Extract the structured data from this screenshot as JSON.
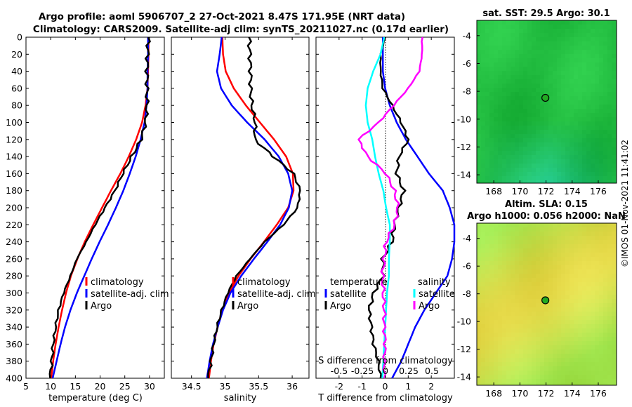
{
  "title_line1": "Argo profile: aoml 5906707_2 27-Oct-2021 8.47S 171.95E (NRT data)",
  "title_line2": "Climatology: CARS2009. Satellite-adj clim: synTS_20211027.nc (0.17d earlier)",
  "timestamp": "©IMOS 01-Nov-2021 11:41:02",
  "colors": {
    "red": "#ff0000",
    "blue": "#0000ff",
    "black": "#000000",
    "cyan": "#00ffff",
    "magenta": "#ff00ff"
  },
  "chart_data": [
    {
      "id": "temperature",
      "type": "line",
      "xlabel": "temperature (deg C)",
      "ylabel": "",
      "xlim": [
        5,
        33
      ],
      "ylim": [
        400,
        0
      ],
      "xticks": [
        "5",
        "10",
        "15",
        "20",
        "25",
        "30"
      ],
      "yticks": [
        "0",
        "20",
        "40",
        "60",
        "80",
        "100",
        "120",
        "140",
        "160",
        "180",
        "200",
        "220",
        "240",
        "260",
        "280",
        "300",
        "320",
        "340",
        "360",
        "380",
        "400"
      ],
      "depth": [
        0,
        20,
        40,
        60,
        80,
        100,
        120,
        140,
        160,
        180,
        200,
        220,
        240,
        260,
        280,
        300,
        320,
        340,
        360,
        380,
        400
      ],
      "series": [
        {
          "name": "climatology",
          "color": "red",
          "values": [
            29.8,
            29.8,
            29.7,
            29.6,
            29.2,
            28.5,
            27.3,
            25.8,
            24.1,
            22.2,
            20.4,
            18.6,
            16.9,
            15.4,
            14.1,
            13.1,
            12.3,
            11.6,
            11.0,
            10.5,
            10.1
          ]
        },
        {
          "name": "satellite-adj. clim",
          "color": "blue",
          "values": [
            29.7,
            29.7,
            29.6,
            29.6,
            29.4,
            29.0,
            28.2,
            27.2,
            26.0,
            24.7,
            23.2,
            21.6,
            19.9,
            18.3,
            16.8,
            15.3,
            14.0,
            12.9,
            12.0,
            11.2,
            10.4
          ]
        },
        {
          "name": "Argo",
          "color": "black",
          "values": [
            29.8,
            29.6,
            29.5,
            29.5,
            29.5,
            29.2,
            28.3,
            26.4,
            24.6,
            23.0,
            21.0,
            19.0,
            17.2,
            15.3,
            14.0,
            12.6,
            11.6,
            11.0,
            10.5,
            10.2,
            9.9
          ]
        }
      ],
      "legend": [
        "climatology",
        "satellite-adj. clim",
        "Argo"
      ]
    },
    {
      "id": "salinity",
      "type": "line",
      "xlabel": "salinity",
      "ylabel": "",
      "xlim": [
        34.2,
        36.25
      ],
      "ylim": [
        400,
        0
      ],
      "xticks": [
        "34.5",
        "35",
        "35.5",
        "36"
      ],
      "depth": [
        0,
        20,
        40,
        60,
        80,
        100,
        120,
        140,
        160,
        180,
        200,
        220,
        240,
        260,
        280,
        300,
        320,
        340,
        360,
        380,
        400
      ],
      "series": [
        {
          "name": "climatology",
          "color": "red",
          "values": [
            34.96,
            34.97,
            35.01,
            35.13,
            35.31,
            35.52,
            35.73,
            35.91,
            36.01,
            36.02,
            35.94,
            35.77,
            35.58,
            35.38,
            35.2,
            35.06,
            34.96,
            34.89,
            34.83,
            34.79,
            34.76
          ]
        },
        {
          "name": "satellite-adj. clim",
          "color": "blue",
          "values": [
            34.95,
            34.92,
            34.88,
            34.94,
            35.1,
            35.33,
            35.59,
            35.8,
            35.94,
            36.0,
            35.95,
            35.82,
            35.63,
            35.43,
            35.24,
            35.08,
            34.97,
            34.89,
            34.82,
            34.77,
            34.73
          ]
        },
        {
          "name": "Argo",
          "color": "black",
          "values": [
            35.36,
            35.37,
            35.38,
            35.38,
            35.4,
            35.45,
            35.44,
            35.72,
            36.02,
            36.12,
            36.08,
            35.87,
            35.59,
            35.37,
            35.17,
            35.04,
            34.95,
            34.88,
            34.83,
            34.79,
            34.75
          ]
        }
      ],
      "legend": [
        "climatology",
        "satellite-adj. clim",
        "Argo"
      ]
    },
    {
      "id": "difference",
      "type": "line",
      "xlabel": "T difference from climatology",
      "xlabel_top": "S difference from climatology",
      "ylabel": "",
      "xlim": [
        -3,
        3
      ],
      "ylim": [
        400,
        0
      ],
      "xticks": [
        "-2",
        "-1",
        "0",
        "1",
        "2"
      ],
      "xticks_top": [
        "-0.5",
        "-0.25",
        "0",
        "0.25",
        "0.5"
      ],
      "depth": [
        0,
        20,
        40,
        60,
        80,
        100,
        120,
        140,
        160,
        180,
        200,
        220,
        240,
        260,
        280,
        300,
        320,
        340,
        360,
        380,
        400
      ],
      "series": [
        {
          "name": "temperature satellite",
          "color": "blue",
          "values": [
            -0.1,
            -0.1,
            -0.1,
            0.0,
            0.2,
            0.5,
            0.9,
            1.4,
            1.9,
            2.5,
            2.8,
            3.0,
            3.0,
            2.9,
            2.7,
            2.2,
            1.7,
            1.3,
            1.0,
            0.7,
            0.3
          ]
        },
        {
          "name": "temperature Argo",
          "color": "black",
          "values": [
            0.0,
            -0.2,
            -0.2,
            -0.1,
            0.3,
            0.7,
            1.0,
            0.6,
            0.5,
            0.8,
            0.6,
            0.4,
            0.3,
            -0.1,
            -0.1,
            -0.5,
            -0.7,
            -0.6,
            -0.5,
            -0.3,
            -0.2
          ]
        },
        {
          "name": "salinity satellite",
          "color": "cyan",
          "values": [
            -0.01,
            -0.05,
            -0.13,
            -0.19,
            -0.21,
            -0.19,
            -0.14,
            -0.11,
            -0.07,
            -0.02,
            0.01,
            0.05,
            0.05,
            0.04,
            0.04,
            0.02,
            0.01,
            0.0,
            -0.01,
            -0.02,
            -0.03
          ]
        },
        {
          "name": "salinity Argo",
          "color": "magenta",
          "values": [
            0.4,
            0.4,
            0.37,
            0.25,
            0.09,
            -0.07,
            -0.29,
            -0.19,
            0.01,
            0.1,
            0.14,
            0.1,
            0.01,
            -0.01,
            -0.03,
            -0.02,
            -0.01,
            -0.01,
            0.0,
            -0.01,
            -0.01
          ]
        }
      ],
      "legend_headers": [
        "temperature",
        "salinity"
      ],
      "legend": [
        "satellite",
        "Argo",
        "satellite",
        "Argo"
      ]
    }
  ],
  "maps": [
    {
      "title": "sat. SST: 29.5 Argo: 30.1",
      "title_line2": "",
      "xticks": [
        "168",
        "170",
        "172",
        "174",
        "176"
      ],
      "yticks": [
        "-4",
        "-6",
        "-8",
        "-10",
        "-12",
        "-14"
      ],
      "float_lon": 171.95,
      "float_lat": -8.47,
      "palette": "green"
    },
    {
      "title": "Altim. SLA: 0.15",
      "title_line2": "Argo h1000: 0.056 h2000: NaN",
      "xticks": [
        "168",
        "170",
        "172",
        "174",
        "176"
      ],
      "yticks": [
        "-4",
        "-6",
        "-8",
        "-10",
        "-12",
        "-14"
      ],
      "float_lon": 171.95,
      "float_lat": -8.47,
      "palette": "yellowgreen"
    }
  ]
}
